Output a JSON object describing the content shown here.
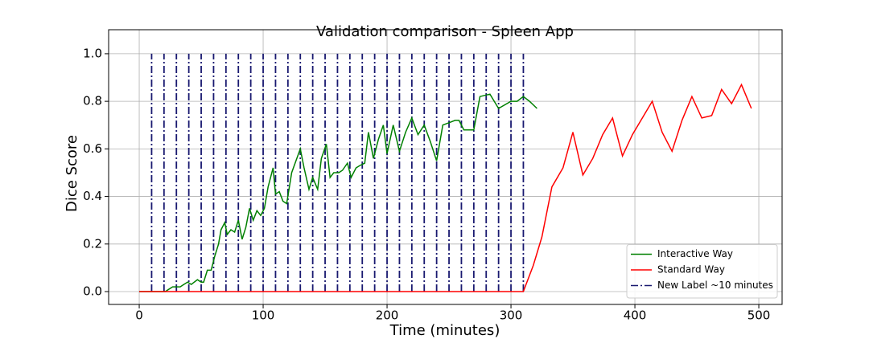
{
  "chart_data": {
    "type": "line",
    "title": "Validation comparison - Spleen App",
    "xlabel": "Time (minutes)",
    "ylabel": "Dice Score",
    "xlim": [
      -24.7,
      518.8
    ],
    "ylim": [
      -0.054,
      1.101
    ],
    "xticks": [
      0,
      100,
      200,
      300,
      400,
      500
    ],
    "yticks": [
      {
        "value": 0,
        "label": "0.0"
      },
      {
        "value": 0.2,
        "label": "0.2"
      },
      {
        "value": 0.4,
        "label": "0.4"
      },
      {
        "value": 0.6,
        "label": "0.6"
      },
      {
        "value": 0.8,
        "label": "0.8"
      },
      {
        "value": 1.0,
        "label": "1.0"
      }
    ],
    "grid": true,
    "legend": "lower right",
    "series": [
      {
        "name": "Interactive Way",
        "color": "#008000",
        "x": [
          0,
          21,
          24,
          27,
          33,
          36,
          39,
          42,
          47,
          50,
          52,
          55,
          58,
          61,
          64,
          66,
          69,
          71,
          74,
          77,
          80,
          83,
          86,
          89,
          92,
          95,
          98,
          101,
          104,
          108,
          110,
          113,
          116,
          119,
          123,
          130,
          133,
          137,
          140,
          144,
          147,
          151,
          154,
          157,
          161,
          164,
          168,
          171,
          175,
          178,
          182,
          185,
          189,
          193,
          197,
          200,
          205,
          210,
          215,
          220,
          225,
          230,
          235,
          240,
          245,
          250,
          255,
          258,
          262,
          270,
          275,
          283,
          290,
          300,
          305,
          310,
          315,
          321
        ],
        "values": [
          0,
          0,
          0.01,
          0.02,
          0.02,
          0.03,
          0.04,
          0.03,
          0.05,
          0.04,
          0.04,
          0.09,
          0.09,
          0.15,
          0.2,
          0.26,
          0.29,
          0.24,
          0.26,
          0.25,
          0.3,
          0.22,
          0.27,
          0.35,
          0.3,
          0.34,
          0.32,
          0.35,
          0.44,
          0.52,
          0.41,
          0.42,
          0.38,
          0.37,
          0.5,
          0.6,
          0.52,
          0.43,
          0.48,
          0.43,
          0.56,
          0.62,
          0.48,
          0.5,
          0.5,
          0.51,
          0.54,
          0.48,
          0.52,
          0.53,
          0.54,
          0.67,
          0.56,
          0.64,
          0.7,
          0.58,
          0.7,
          0.59,
          0.67,
          0.73,
          0.66,
          0.7,
          0.63,
          0.55,
          0.7,
          0.71,
          0.72,
          0.72,
          0.68,
          0.68,
          0.82,
          0.83,
          0.77,
          0.8,
          0.8,
          0.82,
          0.8,
          0.77
        ]
      },
      {
        "name": "Standard Way",
        "color": "#ff0000",
        "x": [
          0,
          310,
          318,
          325,
          333,
          342,
          350,
          358,
          366,
          374,
          382,
          390,
          398,
          406,
          414,
          422,
          430,
          438,
          446,
          454,
          462,
          470,
          478,
          486,
          494
        ],
        "values": [
          0,
          0,
          0.11,
          0.23,
          0.44,
          0.52,
          0.67,
          0.49,
          0.56,
          0.66,
          0.73,
          0.57,
          0.66,
          0.73,
          0.8,
          0.67,
          0.59,
          0.72,
          0.82,
          0.73,
          0.74,
          0.85,
          0.79,
          0.87,
          0.77
        ]
      }
    ],
    "vlines": {
      "name": "New Label ~10 minutes",
      "color": "#191970",
      "x": [
        10,
        20,
        30,
        40,
        50,
        60,
        70,
        80,
        90,
        100,
        110,
        120,
        130,
        140,
        150,
        160,
        170,
        180,
        190,
        200,
        210,
        220,
        230,
        240,
        250,
        260,
        270,
        280,
        290,
        300,
        310
      ],
      "ymin": 0,
      "ymax": 1
    }
  }
}
